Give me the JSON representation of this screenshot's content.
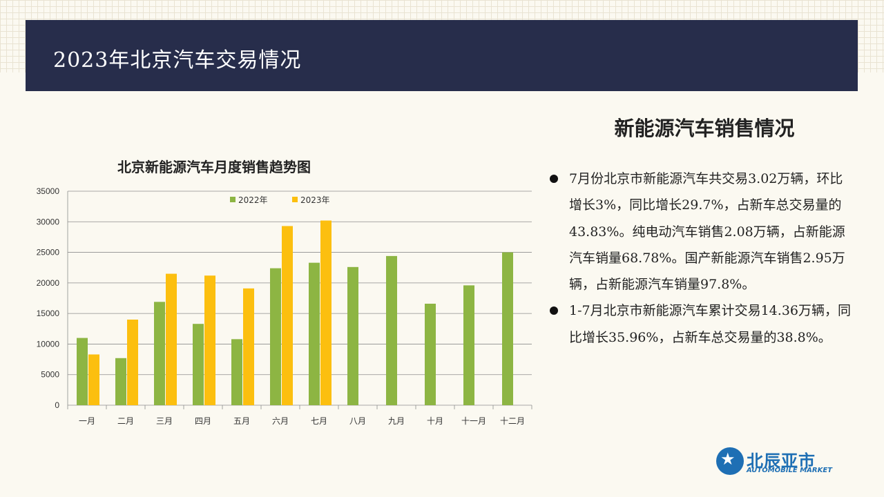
{
  "header": {
    "title": "2023年北京汽车交易情况"
  },
  "section": {
    "title": "新能源汽车销售情况",
    "bullets": [
      "7月份北京市新能源汽车共交易3.02万辆，环比增长3%，同比增长29.7%，占新车总交易量的43.83%。纯电动汽车销售2.08万辆，占新能源汽车销量68.78%。国产新能源汽车销售2.95万辆，占新能源汽车销量97.8%。",
      "1-7月北京市新能源汽车累计交易14.36万辆，同比增长35.96%，占新车总交易量的38.8%。"
    ]
  },
  "logo": {
    "name_cn": "北辰亚市",
    "name_en": "AUTOMOBILE MARKET"
  },
  "colors": {
    "series2022": "#8db543",
    "series2023": "#fcbf0f",
    "header_bg": "#272d4b",
    "logo": "#1e6fb4"
  },
  "chart_data": {
    "type": "bar",
    "title": "北京新能源汽车月度销售趋势图",
    "xlabel": "",
    "ylabel": "",
    "categories": [
      "一月",
      "二月",
      "三月",
      "四月",
      "五月",
      "六月",
      "七月",
      "八月",
      "九月",
      "十月",
      "十一月",
      "十二月"
    ],
    "series": [
      {
        "name": "2022年",
        "values": [
          11000,
          7700,
          16900,
          13300,
          10800,
          22400,
          23300,
          22600,
          24400,
          16600,
          19600,
          25000
        ]
      },
      {
        "name": "2023年",
        "values": [
          8300,
          14000,
          21500,
          21200,
          19100,
          29300,
          30200,
          null,
          null,
          null,
          null,
          null
        ]
      }
    ],
    "ylim": [
      0,
      35000
    ],
    "yticks": [
      0,
      5000,
      10000,
      15000,
      20000,
      25000,
      30000,
      35000
    ],
    "grid": true,
    "legend": "top"
  }
}
